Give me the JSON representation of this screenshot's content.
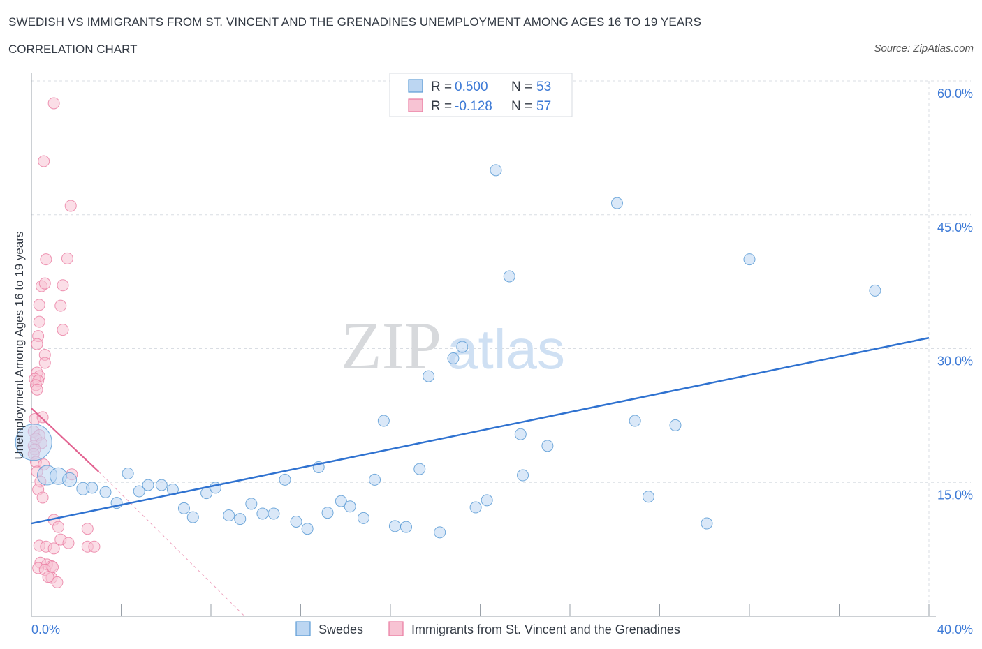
{
  "header": {
    "title": "SWEDISH VS IMMIGRANTS FROM ST. VINCENT AND THE GRENADINES UNEMPLOYMENT AMONG AGES 16 TO 19 YEARS",
    "subtitle": "CORRELATION CHART",
    "source": "Source: ZipAtlas.com"
  },
  "colors": {
    "blue": "#5b9bd5",
    "blue_fill": "#bcd6f2",
    "blue_line": "#2f72d0",
    "pink": "#ea7aa0",
    "pink_fill": "#f7c3d3",
    "pink_line": "#e26391",
    "axis_text": "#3d7ad6",
    "grid": "#d9dde3"
  },
  "watermark": {
    "zip": "ZIP",
    "atlas": "atlas"
  },
  "legend_top": {
    "rows": [
      {
        "r_label": "R = ",
        "r_value": "0.500",
        "n_label": "N = ",
        "n_value": "53"
      },
      {
        "r_label": "R = ",
        "r_value": "-0.128",
        "n_label": "N = ",
        "n_value": "57"
      }
    ]
  },
  "legend_bottom": {
    "items": [
      "Swedes",
      "Immigrants from St. Vincent and the Grenadines"
    ]
  },
  "chart_data": {
    "type": "scatter",
    "title": "SWEDISH VS IMMIGRANTS FROM ST. VINCENT AND THE GRENADINES UNEMPLOYMENT AMONG AGES 16 TO 19 YEARS",
    "subtitle": "CORRELATION CHART",
    "xlabel": "",
    "ylabel": "Unemployment Among Ages 16 to 19 years",
    "xlim": [
      0,
      40
    ],
    "ylim": [
      0,
      60
    ],
    "x_tick_labels": [
      "0.0%",
      "40.0%"
    ],
    "y_tick_labels": [
      "15.0%",
      "30.0%",
      "45.0%",
      "60.0%"
    ],
    "y_ticks": [
      15,
      30,
      45,
      60
    ],
    "grid": true,
    "legend_position": "top-center",
    "series": [
      {
        "name": "Swedes",
        "R": 0.5,
        "N": 53,
        "trend": {
          "x": [
            0,
            40
          ],
          "y": [
            10.4,
            31.2
          ]
        },
        "points": [
          [
            0.1,
            19.5,
            26
          ],
          [
            0.7,
            15.8,
            14
          ],
          [
            1.2,
            15.7,
            12
          ],
          [
            1.7,
            15.3,
            10
          ],
          [
            2.3,
            14.3,
            9
          ],
          [
            2.7,
            14.4,
            8
          ],
          [
            3.3,
            13.9,
            8
          ],
          [
            3.8,
            12.7,
            8
          ],
          [
            4.3,
            16.0,
            8
          ],
          [
            4.8,
            14.0,
            8
          ],
          [
            5.2,
            14.7,
            8
          ],
          [
            5.8,
            14.7,
            8
          ],
          [
            6.3,
            14.2,
            8
          ],
          [
            6.8,
            12.1,
            8
          ],
          [
            7.2,
            11.1,
            8
          ],
          [
            7.8,
            13.8,
            8
          ],
          [
            8.2,
            14.4,
            8
          ],
          [
            8.8,
            11.3,
            8
          ],
          [
            9.3,
            10.9,
            8
          ],
          [
            9.8,
            12.6,
            8
          ],
          [
            10.3,
            11.5,
            8
          ],
          [
            10.8,
            11.5,
            8
          ],
          [
            11.3,
            15.3,
            8
          ],
          [
            11.8,
            10.6,
            8
          ],
          [
            12.3,
            9.8,
            8
          ],
          [
            12.8,
            16.7,
            8
          ],
          [
            13.2,
            11.6,
            8
          ],
          [
            13.8,
            12.9,
            8
          ],
          [
            14.2,
            12.3,
            8
          ],
          [
            14.8,
            11.0,
            8
          ],
          [
            15.3,
            15.3,
            8
          ],
          [
            15.7,
            21.9,
            8
          ],
          [
            16.2,
            10.1,
            8
          ],
          [
            16.7,
            10.0,
            8
          ],
          [
            17.3,
            16.5,
            8
          ],
          [
            17.7,
            26.9,
            8
          ],
          [
            18.2,
            9.4,
            8
          ],
          [
            18.8,
            28.9,
            8
          ],
          [
            19.2,
            30.2,
            8
          ],
          [
            19.8,
            12.2,
            8
          ],
          [
            20.3,
            13.0,
            8
          ],
          [
            20.7,
            50.0,
            8
          ],
          [
            21.3,
            38.1,
            8
          ],
          [
            21.8,
            20.4,
            8
          ],
          [
            21.9,
            15.8,
            8
          ],
          [
            23.0,
            19.1,
            8
          ],
          [
            26.1,
            46.3,
            8
          ],
          [
            26.9,
            21.9,
            8
          ],
          [
            27.5,
            13.4,
            8
          ],
          [
            28.7,
            21.4,
            8
          ],
          [
            30.1,
            10.4,
            8
          ],
          [
            32.0,
            40.0,
            8
          ],
          [
            37.6,
            36.5,
            8
          ]
        ]
      },
      {
        "name": "Immigrants from St. Vincent and the Grenadines",
        "R": -0.128,
        "N": 57,
        "trend": {
          "x": [
            0,
            3.0
          ],
          "y": [
            23.3,
            16.2
          ]
        },
        "trend_extension": {
          "x": [
            3.0,
            9.5
          ],
          "y": [
            16.2,
            0
          ]
        },
        "points": [
          [
            1.0,
            57.5
          ],
          [
            0.55,
            51.0
          ],
          [
            1.75,
            46.0
          ],
          [
            0.65,
            40.0
          ],
          [
            1.6,
            40.1
          ],
          [
            0.45,
            37.0
          ],
          [
            0.6,
            37.3
          ],
          [
            1.4,
            37.1
          ],
          [
            0.35,
            34.9
          ],
          [
            1.3,
            34.8
          ],
          [
            0.35,
            33.0
          ],
          [
            1.4,
            32.1
          ],
          [
            0.3,
            31.4
          ],
          [
            0.25,
            30.5
          ],
          [
            0.6,
            29.3
          ],
          [
            0.6,
            28.4
          ],
          [
            0.25,
            27.3
          ],
          [
            0.35,
            26.9
          ],
          [
            0.15,
            26.6
          ],
          [
            0.3,
            26.4
          ],
          [
            0.2,
            25.9
          ],
          [
            0.25,
            25.4
          ],
          [
            0.15,
            22.1
          ],
          [
            0.5,
            22.3
          ],
          [
            0.1,
            20.7
          ],
          [
            0.35,
            20.3
          ],
          [
            0.2,
            19.9
          ],
          [
            0.1,
            19.1
          ],
          [
            0.45,
            19.4
          ],
          [
            0.15,
            18.7
          ],
          [
            0.1,
            18.2
          ],
          [
            0.2,
            17.3
          ],
          [
            0.55,
            17.0
          ],
          [
            0.25,
            16.2
          ],
          [
            1.8,
            15.9
          ],
          [
            0.4,
            15.1
          ],
          [
            0.3,
            14.2
          ],
          [
            0.5,
            13.3
          ],
          [
            1.0,
            10.8
          ],
          [
            1.2,
            10.0
          ],
          [
            2.5,
            9.8
          ],
          [
            1.3,
            8.6
          ],
          [
            1.65,
            8.2
          ],
          [
            0.35,
            7.9
          ],
          [
            0.65,
            7.8
          ],
          [
            1.0,
            7.6
          ],
          [
            2.5,
            7.8
          ],
          [
            2.8,
            7.8
          ],
          [
            0.4,
            6.0
          ],
          [
            0.7,
            5.8
          ],
          [
            0.9,
            5.6
          ],
          [
            0.3,
            5.4
          ],
          [
            0.6,
            5.2
          ],
          [
            0.95,
            5.5
          ],
          [
            0.9,
            4.3
          ],
          [
            0.75,
            4.4
          ],
          [
            1.15,
            3.8
          ]
        ]
      }
    ]
  }
}
